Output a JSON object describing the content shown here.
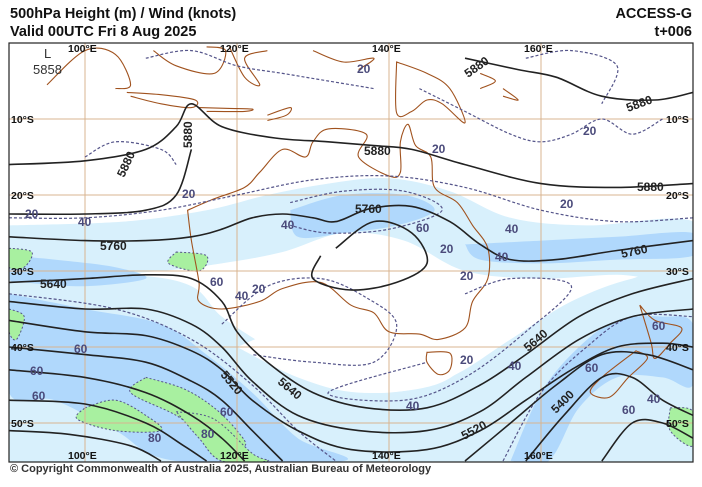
{
  "header": {
    "title": "500hPa Height (m) / Wind (knots)",
    "valid": "Valid 00UTC Fri 8 Aug 2025",
    "model": "ACCESS-G",
    "lead_time": "t+006"
  },
  "map": {
    "longitude_labels": [
      "100°E",
      "120°E",
      "140°E",
      "160°E"
    ],
    "latitude_labels": [
      "10°S",
      "20°S",
      "30°S",
      "40°S",
      "50°S"
    ],
    "low_center": {
      "symbol": "L",
      "value": "5858"
    },
    "height_contour_labels": [
      "5880",
      "5880",
      "5880",
      "5880",
      "5880",
      "5880",
      "5760",
      "5760",
      "5760",
      "5640",
      "5640",
      "5640",
      "5520",
      "5520",
      "5400"
    ],
    "wind_labels": [
      "20",
      "20",
      "20",
      "20",
      "20",
      "20",
      "20",
      "20",
      "20",
      "40",
      "40",
      "40",
      "40",
      "40",
      "40",
      "40",
      "60",
      "60",
      "60",
      "60",
      "60",
      "60",
      "60",
      "60",
      "60",
      "80",
      "80",
      "40",
      "20"
    ],
    "colors": {
      "wind_20_40": "#d8f0fc",
      "wind_40_60": "#b0d8fc",
      "wind_60_plus": "#a8f0a0",
      "height_contour": "#222222",
      "isotach": "#55558a",
      "coastline": "#a0521e",
      "graticule": "#d8b490"
    }
  },
  "footer": {
    "copyright": "© Copyright Commonwealth of Australia 2025, Australian Bureau of Meteorology"
  }
}
